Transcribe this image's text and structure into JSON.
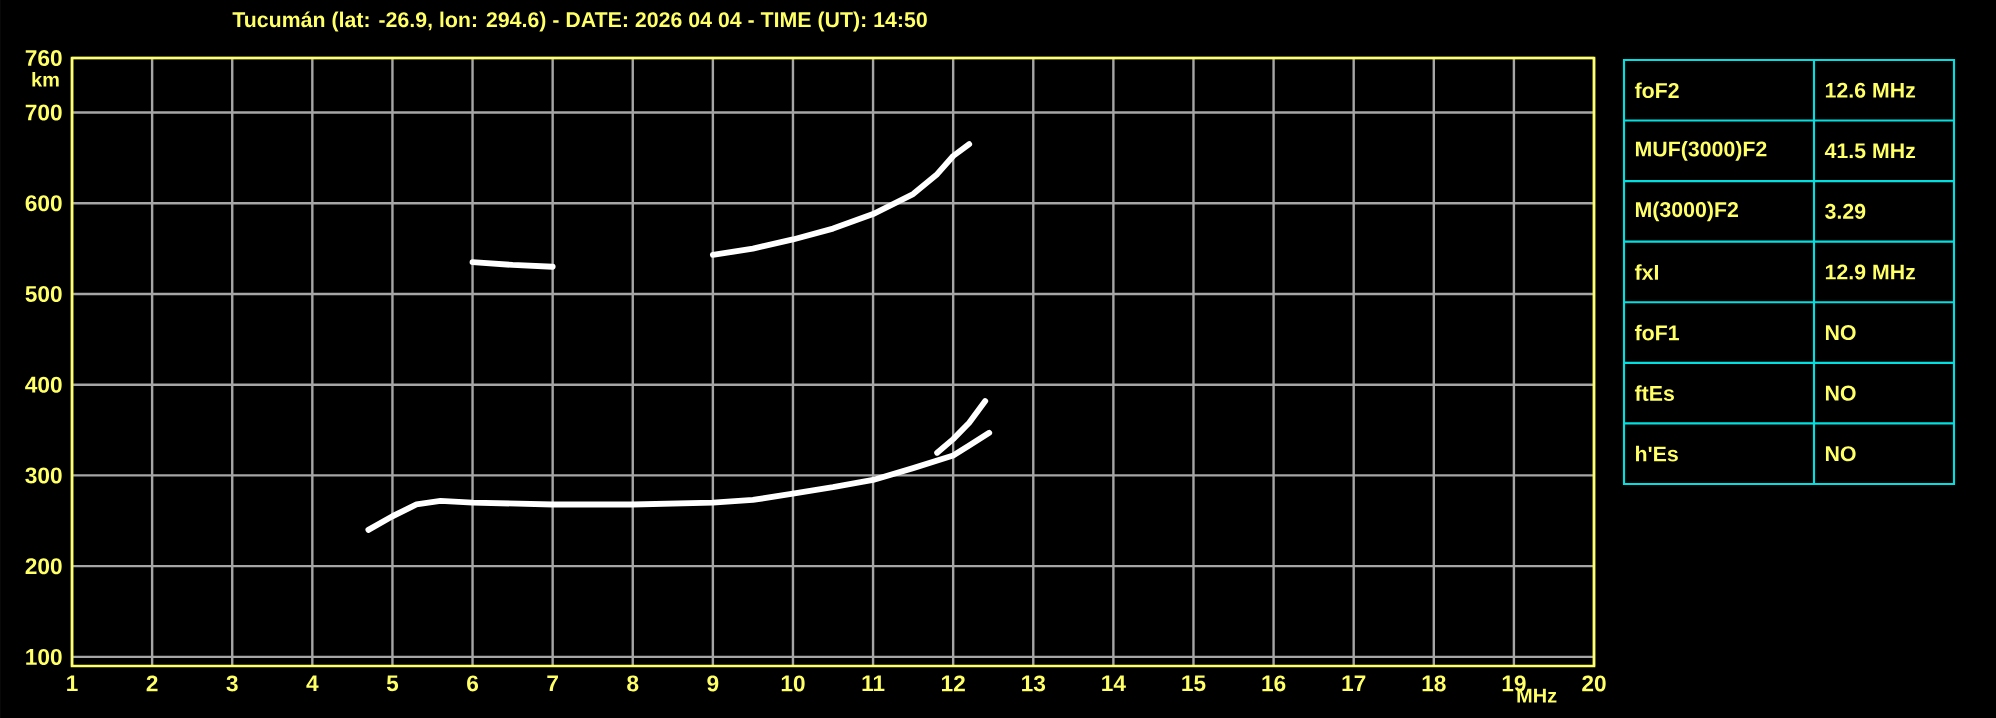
{
  "chart_data": [
    {
      "type": "line",
      "title": "Tucumán (lat: -26.9, lon: 294.6) - DATE: 2026 04 04 - TIME (UT): 14:50",
      "xlabel": "MHz",
      "ylabel": "km",
      "xlim": [
        1,
        20
      ],
      "ylim": [
        90,
        760
      ],
      "xticks": [
        1,
        2,
        3,
        4,
        5,
        6,
        7,
        8,
        9,
        10,
        11,
        12,
        13,
        14,
        15,
        16,
        17,
        18,
        19,
        20
      ],
      "yticks": [
        100,
        200,
        300,
        400,
        500,
        600,
        700,
        760
      ],
      "grid": true,
      "marker": "none",
      "line_style": "solid",
      "series": [
        {
          "color": "#ffffff",
          "x": [
            4.7,
            5.0,
            5.3,
            5.6,
            6.0,
            7.0,
            8.0,
            9.0,
            9.5,
            10.0,
            10.5,
            11.0,
            11.5,
            12.0,
            12.2,
            12.45
          ],
          "values": [
            240,
            255,
            268,
            272,
            270,
            268,
            268,
            270,
            273,
            280,
            287,
            295,
            308,
            322,
            333,
            347
          ]
        },
        {
          "color": "#ffffff",
          "x": [
            11.8,
            12.0,
            12.2,
            12.4
          ],
          "values": [
            325,
            340,
            358,
            382
          ]
        },
        {
          "color": "#ffffff",
          "x": [
            6.0,
            6.5,
            7.0,
            8.5,
            9.0,
            9.5,
            10.0,
            10.5,
            11.0,
            11.5,
            11.8,
            12.0,
            12.2
          ],
          "values": [
            535,
            532,
            530,
            null,
            543,
            550,
            560,
            572,
            588,
            610,
            632,
            652,
            665
          ]
        }
      ]
    },
    {
      "type": "other",
      "annotations": [
        "foF2",
        "12.6 MHz",
        "MUF(3000)F2",
        "41.5 MHz",
        "M(3000)F2",
        "3.29",
        "fxI",
        "12.9 MHz",
        "foF1",
        "NO",
        "ftEs",
        "NO",
        "h'Es",
        "NO"
      ]
    }
  ]
}
